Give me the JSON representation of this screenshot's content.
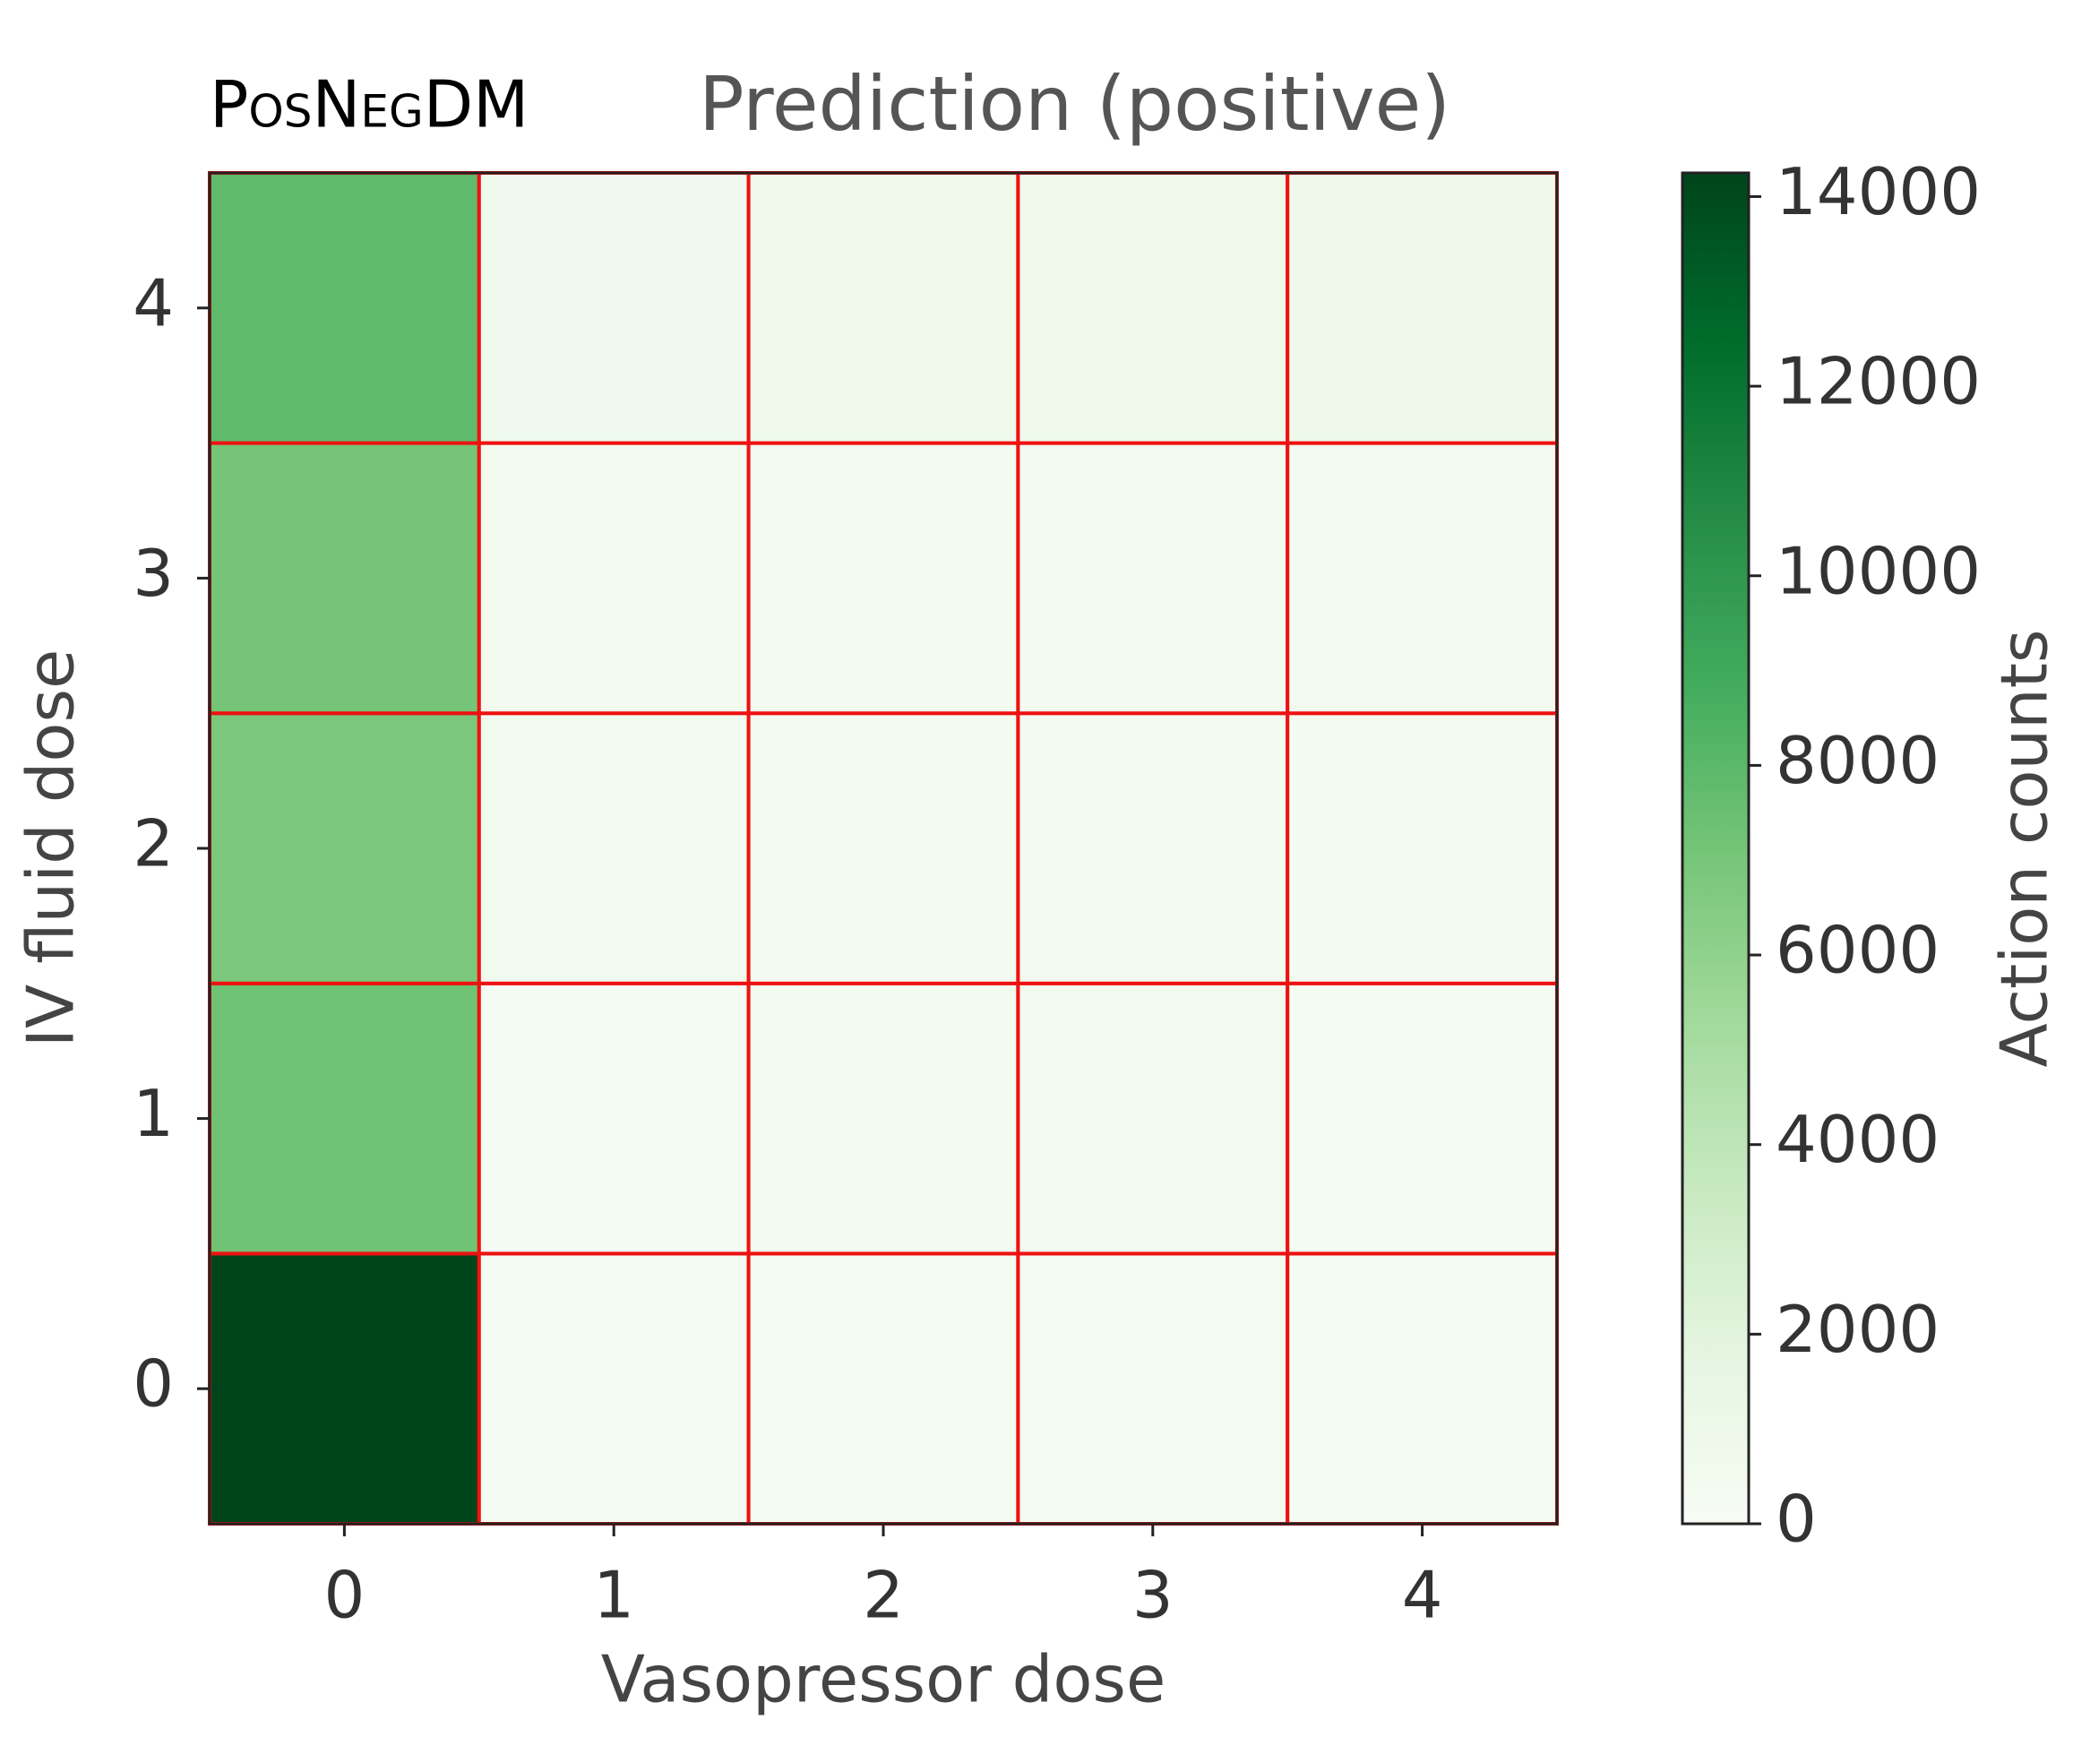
{
  "chart_data": {
    "type": "heatmap",
    "method": "PosNegDM",
    "title": "Prediction (positive)",
    "xlabel": "Vasopressor dose",
    "ylabel": "IV fluid dose",
    "xlim": [
      -0.5,
      4.5
    ],
    "xticks": [
      0,
      1,
      2,
      3,
      4
    ],
    "ylim": [
      -0.5,
      4.5
    ],
    "yticks": [
      0,
      1,
      2,
      3,
      4
    ],
    "z": [
      [
        14250,
        250,
        300,
        300,
        250
      ],
      [
        7250,
        250,
        400,
        450,
        300
      ],
      [
        6850,
        600,
        400,
        450,
        350
      ],
      [
        7100,
        350,
        350,
        400,
        500
      ],
      [
        7850,
        700,
        750,
        800,
        850
      ]
    ],
    "colormap": "Greens",
    "cell_border_color": "#ee1111",
    "clim": [
      0,
      14250
    ],
    "cticks": [
      0,
      2000,
      4000,
      6000,
      8000,
      10000,
      12000,
      14000
    ],
    "clabel": "Action counts"
  }
}
